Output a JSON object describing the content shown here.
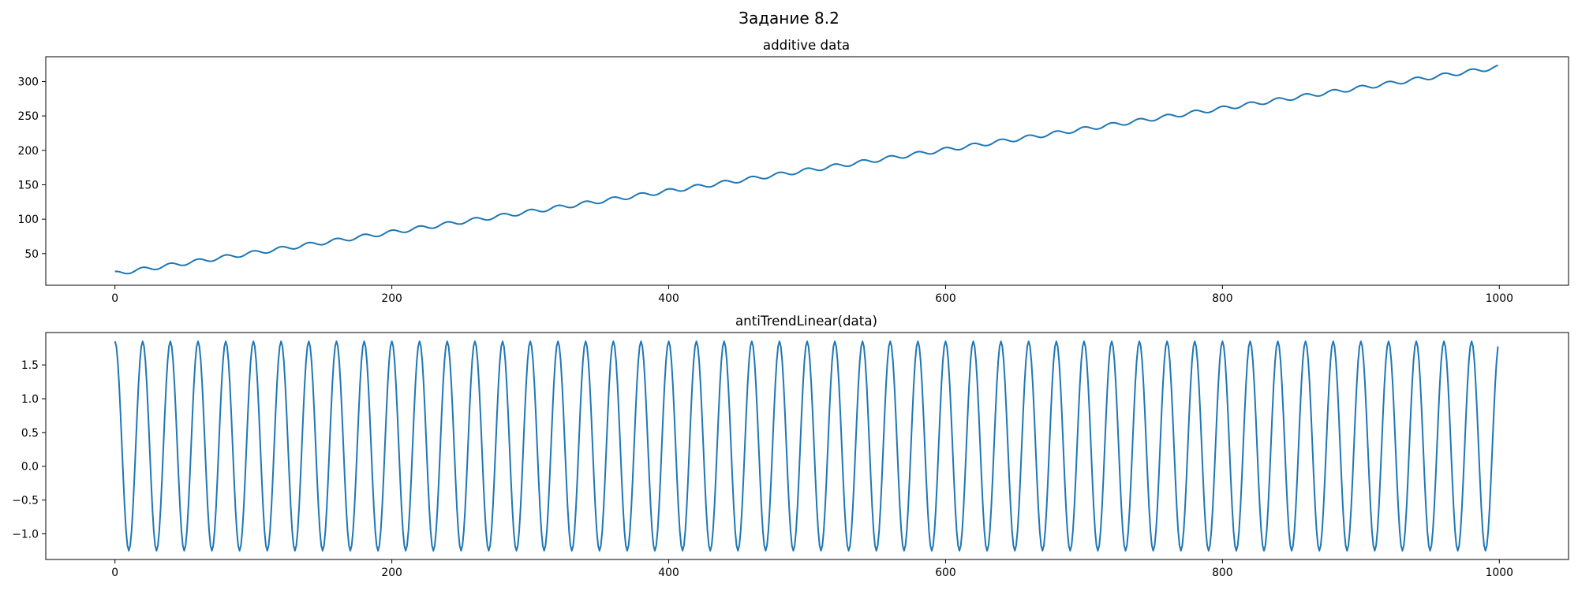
{
  "figure": {
    "suptitle": "Задание 8.2"
  },
  "colors": {
    "line": "#1f77b4",
    "axes_edge": "#000000",
    "background": "#ffffff"
  },
  "chart_data": [
    {
      "type": "line",
      "title": "additive data",
      "xlabel": "",
      "ylabel": "",
      "xlim": [
        -50,
        1050
      ],
      "ylim": [
        4,
        336
      ],
      "grid": false,
      "x_ticks": [
        0,
        200,
        400,
        600,
        800,
        1000
      ],
      "x_tick_labels": [
        "0",
        "200",
        "400",
        "600",
        "800",
        "1000"
      ],
      "y_ticks": [
        50,
        100,
        150,
        200,
        250,
        300
      ],
      "y_tick_labels": [
        "50",
        "100",
        "150",
        "200",
        "250",
        "300"
      ],
      "series": [
        {
          "x_range": [
            0,
            999
          ],
          "formula": "y = 0.3*x + 21 + 3*cos(2*pi*x/20)",
          "trend_slope": 0.3,
          "trend_intercept": 21,
          "amplitude": 3,
          "period": 20,
          "samples": [
            {
              "x": 0,
              "y": 24
            },
            {
              "x": 10,
              "y": 21
            },
            {
              "x": 200,
              "y": 84
            },
            {
              "x": 400,
              "y": 144
            },
            {
              "x": 600,
              "y": 204
            },
            {
              "x": 800,
              "y": 264
            },
            {
              "x": 990,
              "y": 315
            }
          ]
        }
      ]
    },
    {
      "type": "line",
      "title": "antiTrendLinear(data)",
      "xlabel": "",
      "ylabel": "",
      "xlim": [
        -50,
        1050
      ],
      "ylim": [
        -1.38,
        1.98
      ],
      "grid": false,
      "x_ticks": [
        0,
        200,
        400,
        600,
        800,
        1000
      ],
      "x_tick_labels": [
        "0",
        "200",
        "400",
        "600",
        "800",
        "1000"
      ],
      "y_ticks": [
        -1.0,
        -0.5,
        0.0,
        0.5,
        1.0,
        1.5
      ],
      "y_tick_labels": [
        "−1.0",
        "−0.5",
        "0.0",
        "0.5",
        "1.0",
        "1.5"
      ],
      "series": [
        {
          "x_range": [
            0,
            999
          ],
          "formula": "y = 0.3 + 1.55*cos(2*pi*x/20)",
          "offset": 0.3,
          "amplitude": 1.55,
          "period": 20,
          "samples": [
            {
              "x": 0,
              "y": 1.85
            },
            {
              "x": 10,
              "y": -1.25
            },
            {
              "x": 20,
              "y": 1.85
            },
            {
              "x": 500,
              "y": 1.85
            },
            {
              "x": 990,
              "y": -1.25
            },
            {
              "x": 999,
              "y": 1.69
            }
          ]
        }
      ]
    }
  ]
}
